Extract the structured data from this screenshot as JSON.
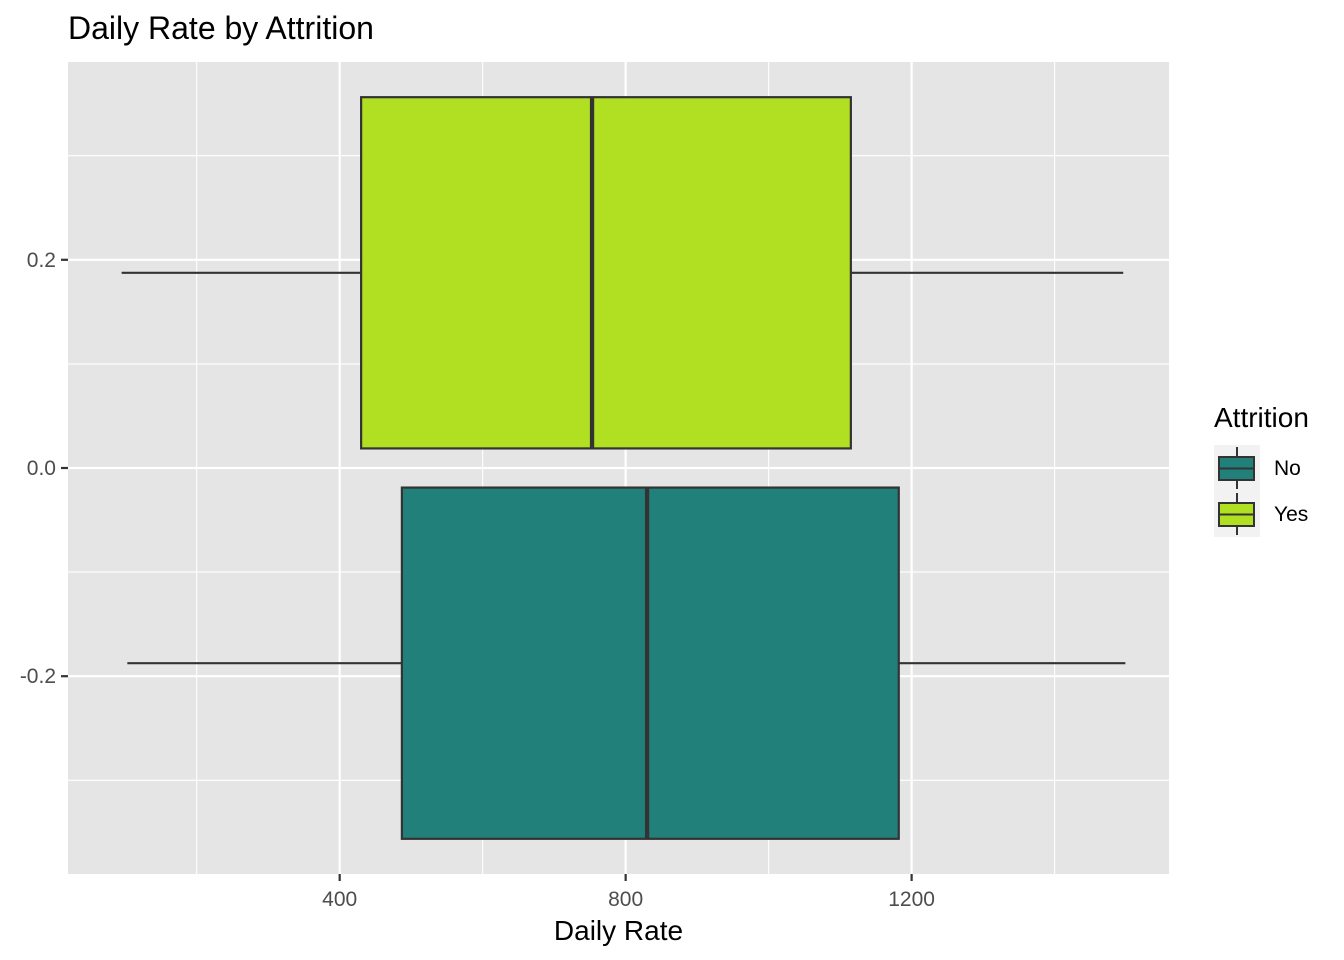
{
  "chart_data": {
    "type": "boxplot",
    "orientation": "horizontal",
    "title": "Daily Rate by Attrition",
    "xlabel": "Daily Rate",
    "ylabel": "",
    "xlim": [
      20,
      1560
    ],
    "ylim": [
      -0.39,
      0.39
    ],
    "x_ticks": [
      400,
      800,
      1200
    ],
    "x_tick_labels": [
      "400",
      "800",
      "1200"
    ],
    "y_ticks": [
      0.2,
      0.0,
      -0.2
    ],
    "y_tick_labels": [
      "0.2",
      "0.0",
      "-0.2"
    ],
    "grid": true,
    "legend": {
      "title": "Attrition",
      "position": "right"
    },
    "series": [
      {
        "name": "No",
        "color": "#21807a",
        "y_center": -0.1875,
        "y_half_width": 0.1687,
        "whisker_low": 103,
        "q1": 487,
        "median": 830,
        "q3": 1182,
        "whisker_high": 1499
      },
      {
        "name": "Yes",
        "color": "#b1e022",
        "y_center": 0.1875,
        "y_half_width": 0.1687,
        "whisker_low": 95,
        "q1": 430,
        "median": 753,
        "q3": 1115,
        "whisker_high": 1496
      }
    ]
  }
}
